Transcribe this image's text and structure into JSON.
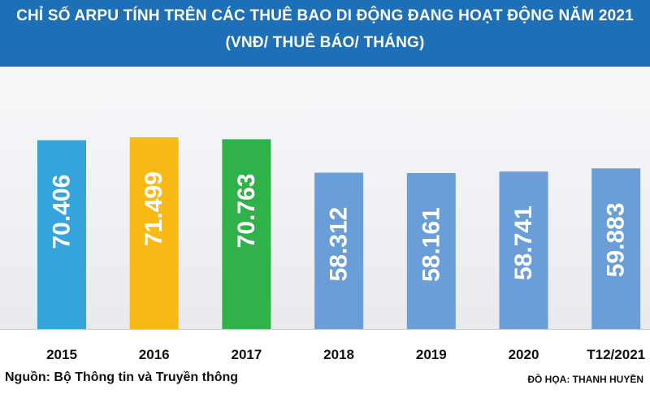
{
  "header": {
    "title_line1": "CHỈ SỐ ARPU TÍNH TRÊN CÁC THUÊ BAO DI ĐỘNG ĐANG HOẠT ĐỘNG NĂM 2021",
    "title_line2": "(VNĐ/ THUÊ BÁO/ THÁNG)"
  },
  "footer": {
    "source": "Nguồn: Bộ Thông tin và Truyền thông",
    "credit": "ĐỒ HỌA: THANH HUYỀN"
  },
  "colors": {
    "banner": "#1d6fb8",
    "bar_2015": "#35a4dc",
    "bar_2016": "#fbb915",
    "bar_2017": "#2fb24a",
    "bar_default": "#6a9ed8"
  },
  "chart_data": {
    "type": "bar",
    "title": "CHỈ SỐ ARPU TÍNH TRÊN CÁC THUÊ BAO DI ĐỘNG ĐANG HOẠT ĐỘNG NĂM 2021",
    "subtitle": "(VNĐ/ THUÊ BÁO/ THÁNG)",
    "categories": [
      "2015",
      "2016",
      "2017",
      "2018",
      "2019",
      "2020",
      "T12/2021"
    ],
    "values": [
      70406,
      71499,
      70763,
      58312,
      58161,
      58741,
      59883
    ],
    "value_labels": [
      "70.406",
      "71.499",
      "70.763",
      "58.312",
      "58.161",
      "58.741",
      "59.883"
    ],
    "bar_colors": [
      "#35a4dc",
      "#fbb915",
      "#2fb24a",
      "#6a9ed8",
      "#6a9ed8",
      "#6a9ed8",
      "#6a9ed8"
    ],
    "xlabel": "",
    "ylabel": "",
    "ylim": [
      0,
      71499
    ],
    "grid": false,
    "legend": "none"
  }
}
